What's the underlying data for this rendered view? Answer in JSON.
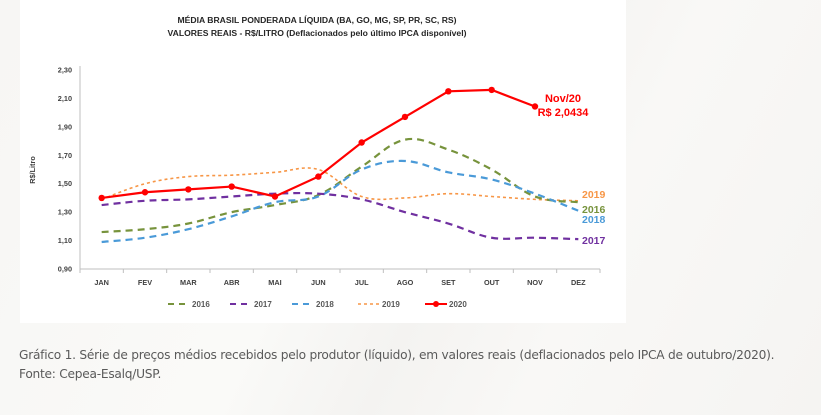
{
  "chart_data": {
    "type": "line",
    "title": [
      "MÉDIA BRASIL PONDERADA LÍQUIDA (BA, GO, MG, SP, PR, SC, RS)",
      "VALORES REAIS - R$/LITRO (Deflacionados pelo último IPCA disponível)"
    ],
    "xlabel": "",
    "ylabel": "R$/Litro",
    "ylim": [
      0.9,
      2.3
    ],
    "yticks": [
      0.9,
      1.1,
      1.3,
      1.5,
      1.7,
      1.9,
      2.1,
      2.3
    ],
    "ytick_labels": [
      "0,90",
      "1,10",
      "1,30",
      "1,50",
      "1,70",
      "1,90",
      "2,10",
      "2,30"
    ],
    "grid": false,
    "legend_position": "bottom",
    "categories": [
      "JAN",
      "FEV",
      "MAR",
      "ABR",
      "MAI",
      "JUN",
      "JUL",
      "AGO",
      "SET",
      "OUT",
      "NOV",
      "DEZ"
    ],
    "series": [
      {
        "name": "2016",
        "color": "#77933c",
        "style": "dashed",
        "end_label": "2016",
        "values": [
          1.16,
          1.18,
          1.22,
          1.3,
          1.35,
          1.42,
          1.62,
          1.81,
          1.74,
          1.6,
          1.41,
          1.37
        ]
      },
      {
        "name": "2017",
        "color": "#7030a0",
        "style": "dashed",
        "end_label": "2017",
        "values": [
          1.35,
          1.38,
          1.39,
          1.41,
          1.43,
          1.43,
          1.39,
          1.3,
          1.22,
          1.12,
          1.12,
          1.11
        ]
      },
      {
        "name": "2018",
        "color": "#4a9ad8",
        "style": "dashed",
        "end_label": "2018",
        "values": [
          1.09,
          1.12,
          1.18,
          1.27,
          1.37,
          1.41,
          1.6,
          1.66,
          1.58,
          1.53,
          1.43,
          1.31
        ]
      },
      {
        "name": "2019",
        "color": "#f79646",
        "style": "dotted",
        "end_label": "2019",
        "values": [
          1.39,
          1.5,
          1.55,
          1.56,
          1.58,
          1.6,
          1.41,
          1.4,
          1.43,
          1.41,
          1.39,
          1.38
        ]
      },
      {
        "name": "2020",
        "color": "#ff0000",
        "style": "solid-markers",
        "end_label": "",
        "values": [
          1.4,
          1.44,
          1.46,
          1.48,
          1.41,
          1.55,
          1.79,
          1.97,
          2.15,
          2.16,
          2.0434,
          null
        ]
      }
    ],
    "annotations": [
      {
        "series": "2020",
        "category": "NOV",
        "lines": [
          "Nov/20",
          "R$ 2,0434"
        ],
        "color": "#ff0000"
      }
    ]
  },
  "caption": {
    "text": "Gráfico 1. Série de preços médios recebidos pelo produtor (líquido), em valores reais (deflacionados pelo IPCA de outubro/2020).",
    "source": "Fonte: Cepea-Esalq/USP."
  }
}
